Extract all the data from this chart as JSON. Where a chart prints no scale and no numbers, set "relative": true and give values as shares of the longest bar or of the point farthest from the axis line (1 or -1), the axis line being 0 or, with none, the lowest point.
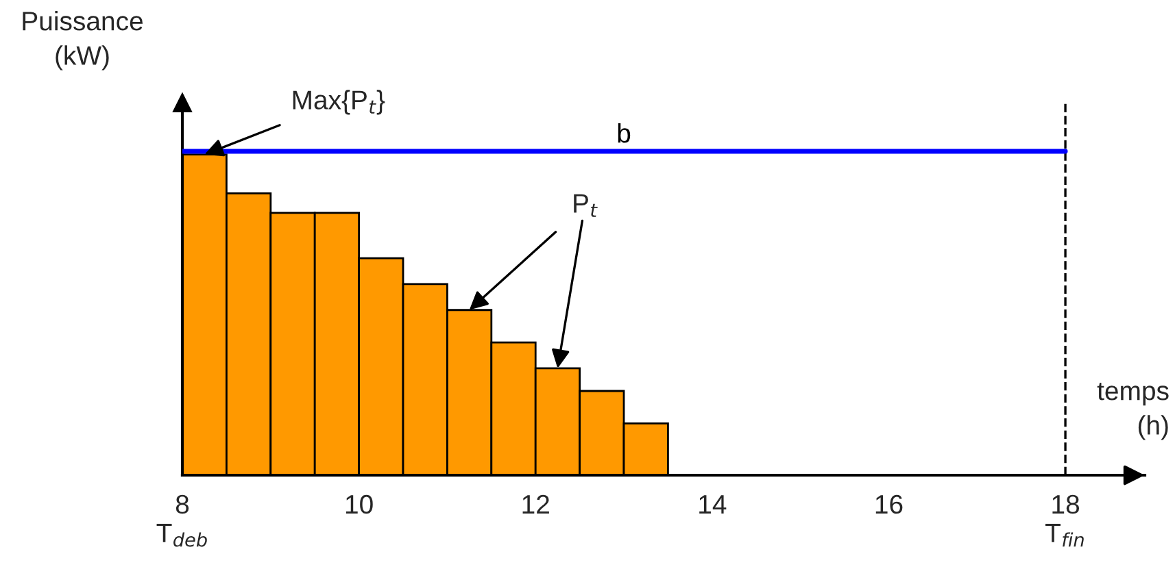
{
  "chart_data": {
    "type": "bar",
    "relative": true,
    "xlabel": "temps\n(h)",
    "ylabel": "Puissance\n(kW)",
    "xlim": [
      8,
      18.9
    ],
    "xticks": [
      {
        "value": 8,
        "label": "8\nT$_{deb}$"
      },
      10,
      12,
      14,
      16,
      {
        "value": 18,
        "label": "18\nT$_{fin}$"
      }
    ],
    "series": [
      {
        "color": "#ff9900",
        "x": [
          8.25,
          8.75,
          9.25,
          9.75,
          10.25,
          10.75,
          11.25,
          11.75,
          12.25,
          12.75,
          13.25
        ],
        "values": [
          0.99,
          0.87,
          0.81,
          0.81,
          0.67,
          0.59,
          0.51,
          0.41,
          0.33,
          0.26,
          0.16
        ]
      },
      {
        "type": "line",
        "name": "b",
        "color": "#0000ff",
        "x": [
          8,
          18
        ],
        "values": [
          1,
          1
        ]
      }
    ],
    "ref_lines": [
      {
        "axis": "x",
        "value": 18,
        "color": "#000000",
        "line_style": "dashed"
      }
    ],
    "annotations": [
      {
        "text": "Max{P$_{t}$}",
        "x": 8.25,
        "y": 0.99
      },
      {
        "text": "P$_{t}$",
        "x": 11.25,
        "y": 0.51
      }
    ],
    "grid": false,
    "legend": false
  }
}
